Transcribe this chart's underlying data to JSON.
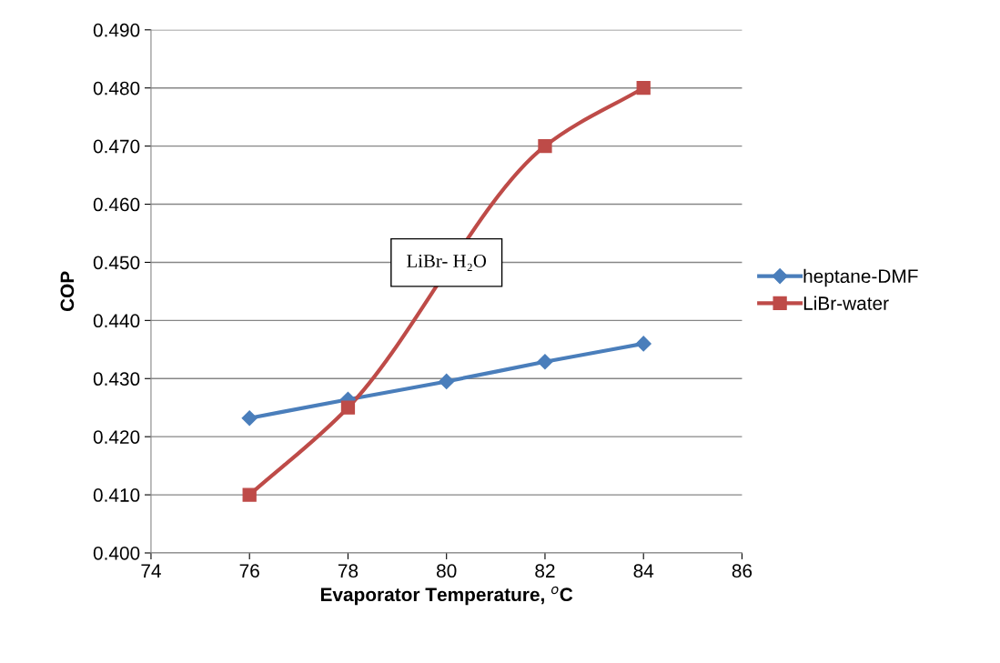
{
  "chart_data": {
    "type": "line",
    "xlabel": "Evaporator Temperature, $^{o}$C",
    "ylabel": "COP",
    "x": [
      76,
      78,
      80,
      82,
      84
    ],
    "series": [
      {
        "name": "heptane-DMF",
        "color": "#4a7ebb",
        "marker": "diamond",
        "values": [
          0.4232,
          0.4264,
          0.4295,
          0.4329,
          0.436
        ]
      },
      {
        "name": "LiBr-water",
        "color": "#be4b48",
        "marker": "square",
        "x": [
          76,
          78,
          82,
          84
        ],
        "values": [
          0.41,
          0.425,
          0.47,
          0.48
        ]
      }
    ],
    "xlim": [
      74,
      86
    ],
    "xticks": [
      74,
      76,
      78,
      80,
      82,
      84,
      86
    ],
    "ylim": [
      0.4,
      0.49
    ],
    "yticks": [
      {
        "value": 0.4,
        "label": "0.400"
      },
      {
        "value": 0.41,
        "label": "0.410"
      },
      {
        "value": 0.42,
        "label": "0.420"
      },
      {
        "value": 0.43,
        "label": "0.430"
      },
      {
        "value": 0.44,
        "label": "0.440"
      },
      {
        "value": 0.45,
        "label": "0.450"
      },
      {
        "value": 0.46,
        "label": "0.460"
      },
      {
        "value": 0.47,
        "label": "0.470"
      },
      {
        "value": 0.48,
        "label": "0.480"
      },
      {
        "value": 0.49,
        "label": "0.490"
      }
    ],
    "grid": "y",
    "legend": "right",
    "annotations": [
      "LiBr- H₂O"
    ]
  }
}
